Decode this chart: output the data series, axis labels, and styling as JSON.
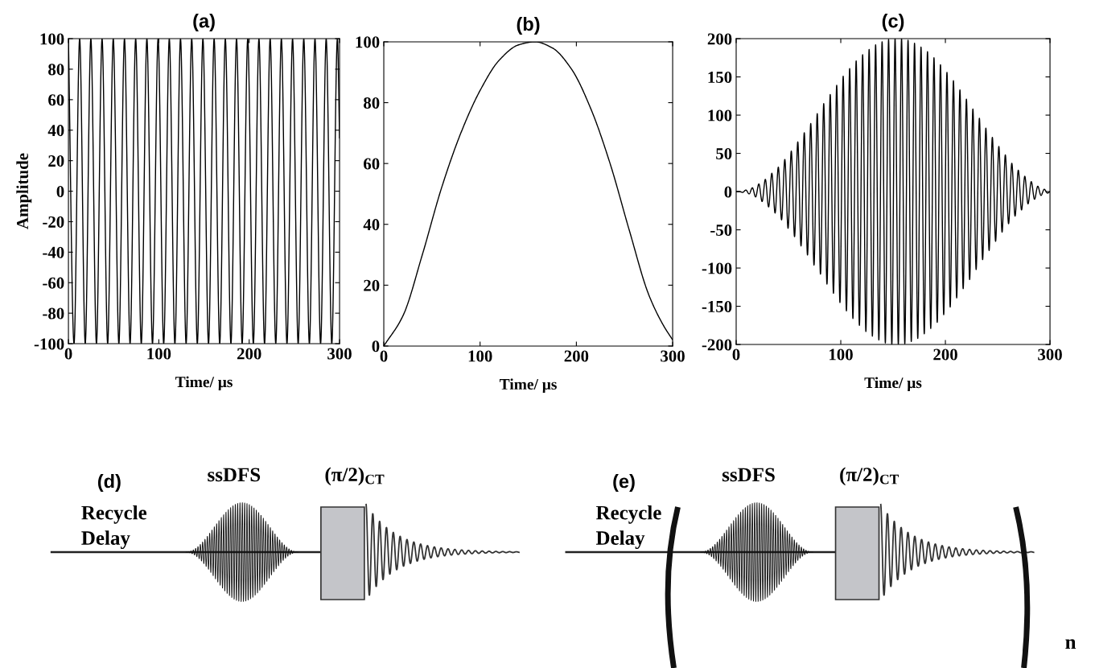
{
  "chart_data": [
    {
      "type": "line",
      "title": "(a)",
      "xlabel": "Time/ μs",
      "ylabel": "Amplitude",
      "xlim": [
        0,
        300
      ],
      "xticks": [
        0,
        100,
        200,
        300
      ],
      "ylim": [
        -100,
        100
      ],
      "yticks": [
        -100,
        -80,
        -60,
        -40,
        -20,
        0,
        20,
        40,
        60,
        80,
        100
      ],
      "x": [
        0,
        6.2,
        12.4,
        18.6,
        24.8,
        31,
        37.2,
        43.4,
        49.6,
        55.8,
        62,
        68.2,
        74.4,
        80.6,
        86.8,
        93,
        99.2,
        105.4,
        111.6,
        117.8,
        124,
        130.2,
        136.4,
        142.6,
        148.8,
        155,
        161.2,
        167.4,
        173.6,
        179.8,
        186,
        192.2,
        198.4,
        204.6,
        210.8,
        217,
        223.2,
        229.4,
        235.6,
        241.8,
        248,
        254.2,
        260.4,
        266.6,
        272.8,
        279,
        285.2,
        291.4,
        297.6,
        300
      ],
      "series": [
        {
          "color": "#000000",
          "values": [
            100,
            -100,
            100,
            -100,
            100,
            -100,
            100,
            -100,
            100,
            -100,
            100,
            -100,
            100,
            -100,
            100,
            -100,
            100,
            -100,
            100,
            -100,
            100,
            -100,
            100,
            -100,
            100,
            -100,
            100,
            -100,
            100,
            -100,
            100,
            -100,
            100,
            -100,
            100,
            -100,
            100,
            -100,
            100,
            -100,
            100,
            -100,
            100,
            -100,
            100,
            -100,
            100,
            -100,
            100,
            35
          ]
        }
      ]
    },
    {
      "type": "line",
      "title": "(b)",
      "xlabel": "Time/ μs",
      "xlim": [
        0,
        300
      ],
      "xticks": [
        0,
        100,
        200,
        300
      ],
      "ylim": [
        0,
        100
      ],
      "yticks": [
        0,
        20,
        40,
        60,
        80,
        100
      ],
      "x": [
        0,
        20,
        40,
        60,
        80,
        100,
        120,
        140,
        157,
        175,
        195,
        215,
        235,
        255,
        275,
        290,
        300
      ],
      "series": [
        {
          "color": "#000000",
          "values": [
            0,
            10,
            30,
            52,
            70,
            84,
            94,
            99,
            100,
            98,
            91,
            78,
            60,
            38,
            17,
            7,
            2
          ]
        }
      ]
    },
    {
      "type": "line",
      "title": "(c)",
      "xlabel": "Time/ μs",
      "xlim": [
        0,
        300
      ],
      "xticks": [
        0,
        100,
        200,
        300
      ],
      "ylim": [
        -200,
        200
      ],
      "yticks": [
        -200,
        -150,
        -100,
        -50,
        0,
        50,
        100,
        150,
        200
      ],
      "x": [
        0,
        3.1,
        6.2,
        9.3,
        12.4,
        15.5,
        18.6,
        21.7,
        24.8,
        27.9,
        31,
        34.1,
        37.2,
        40.3,
        43.4,
        46.5,
        49.6,
        52.7,
        55.8,
        58.9,
        62,
        65.1,
        68.2,
        71.3,
        74.4,
        77.5,
        80.6,
        83.7,
        86.8,
        89.9,
        93,
        96.1,
        99.2,
        102.3,
        105.4,
        108.5,
        111.6,
        114.7,
        117.8,
        120.9,
        124,
        127.1,
        130.2,
        133.3,
        136.4,
        139.5,
        142.6,
        145.7,
        148.8,
        151.9,
        155,
        158.1,
        161.2,
        164.3,
        167.4,
        170.5,
        173.6,
        176.7,
        179.8,
        182.9,
        186,
        189.1,
        192.2,
        195.3,
        198.4,
        201.5,
        204.6,
        207.7,
        210.8,
        213.9,
        217,
        220.1,
        223.2,
        226.3,
        229.4,
        232.5,
        235.6,
        238.7,
        241.8,
        244.9,
        248,
        251.1,
        254.2,
        257.3,
        260.4,
        263.5,
        266.6,
        269.7,
        272.8,
        275.9,
        279,
        282.1,
        285.2,
        288.3,
        291.4,
        294.5,
        297.6,
        300
      ],
      "series": [
        {
          "color": "#000000",
          "values": [
            0,
            0,
            -1,
            2,
            -3,
            5,
            -7,
            10,
            -13,
            16,
            -20,
            24,
            -28,
            32,
            -37,
            42,
            -48,
            53,
            -59,
            65,
            -71,
            77,
            -83,
            89,
            -96,
            102,
            -108,
            115,
            -121,
            127,
            -133,
            139,
            -145,
            151,
            -156,
            161,
            -166,
            171,
            -175,
            179,
            -183,
            186,
            -189,
            192,
            -194,
            196,
            -198,
            199,
            -200,
            200,
            -200,
            200,
            -199,
            198,
            -196,
            194,
            -192,
            189,
            -186,
            183,
            -179,
            175,
            -171,
            166,
            -161,
            156,
            -151,
            145,
            -139,
            133,
            -127,
            121,
            -115,
            108,
            -102,
            96,
            -89,
            83,
            -77,
            71,
            -65,
            59,
            -53,
            48,
            -42,
            37,
            -32,
            28,
            -24,
            20,
            -16,
            13,
            -10,
            7,
            -5,
            3,
            -2,
            0
          ]
        }
      ]
    },
    {
      "type": "other",
      "title": "(d)",
      "annotations": [
        "Recycle Delay",
        "ssDFS",
        "(π/2)$_{CT}$"
      ]
    },
    {
      "type": "other",
      "title": "(e)",
      "annotations": [
        "Recycle Delay",
        "ssDFS",
        "(π/2)$_{CT}$",
        "n"
      ]
    }
  ]
}
